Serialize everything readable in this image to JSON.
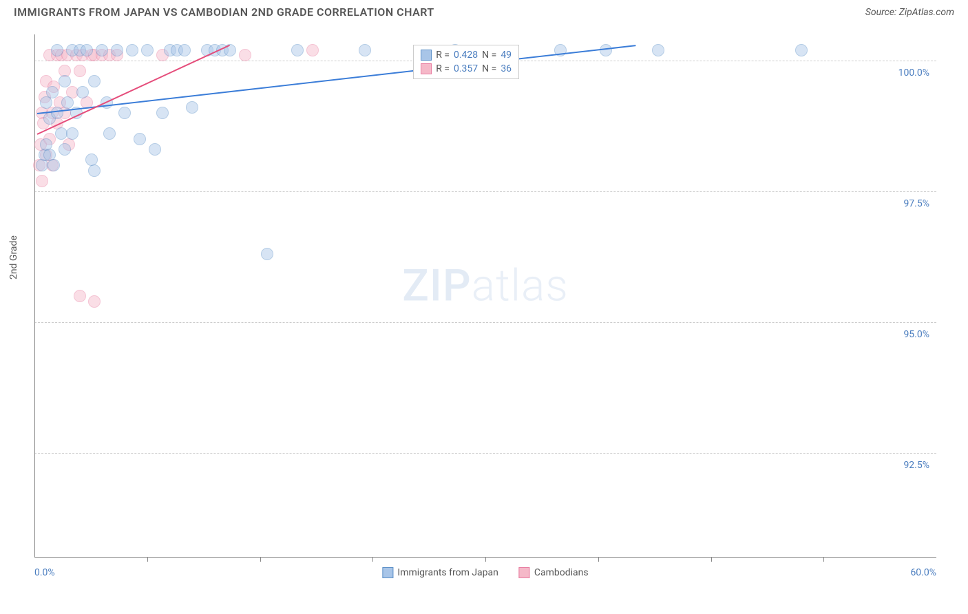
{
  "header": {
    "title": "IMMIGRANTS FROM JAPAN VS CAMBODIAN 2ND GRADE CORRELATION CHART",
    "source": "Source: ZipAtlas.com"
  },
  "watermark": "ZIPatlas",
  "chart": {
    "type": "scatter",
    "ylabel": "2nd Grade",
    "x_domain": [
      0,
      60
    ],
    "y_domain": [
      90.5,
      100.5
    ],
    "x_ticks": [
      0.0,
      60.0
    ],
    "x_tick_labels": [
      "0.0%",
      "60.0%"
    ],
    "x_minor_ticks": [
      7.5,
      15,
      22.5,
      30,
      37.5,
      45,
      52.5
    ],
    "y_ticks": [
      92.5,
      95.0,
      97.5,
      100.0
    ],
    "y_tick_labels": [
      "92.5%",
      "95.0%",
      "97.5%",
      "100.0%"
    ],
    "grid_color": "#cccccc",
    "axis_color": "#888888",
    "background_color": "#ffffff",
    "marker_radius": 9,
    "marker_opacity": 0.45,
    "series": [
      {
        "name": "Immigrants from Japan",
        "color_fill": "#a8c5e8",
        "color_stroke": "#5b8fc7",
        "r": 0.428,
        "n": 49,
        "trend": {
          "x1": 0.2,
          "y1": 99.0,
          "x2": 40.0,
          "y2": 100.3,
          "color": "#3b7dd8"
        },
        "points": [
          [
            0.5,
            98.0
          ],
          [
            0.7,
            98.2
          ],
          [
            0.8,
            99.2
          ],
          [
            0.8,
            98.4
          ],
          [
            1.0,
            98.9
          ],
          [
            1.0,
            98.2
          ],
          [
            1.2,
            99.4
          ],
          [
            1.3,
            98.0
          ],
          [
            1.5,
            100.2
          ],
          [
            1.5,
            99.0
          ],
          [
            1.8,
            98.6
          ],
          [
            2.0,
            99.6
          ],
          [
            2.0,
            98.3
          ],
          [
            2.2,
            99.2
          ],
          [
            2.5,
            100.2
          ],
          [
            2.5,
            98.6
          ],
          [
            2.8,
            99.0
          ],
          [
            3.0,
            100.2
          ],
          [
            3.2,
            99.4
          ],
          [
            3.5,
            100.2
          ],
          [
            3.8,
            98.1
          ],
          [
            4.0,
            99.6
          ],
          [
            4.0,
            97.9
          ],
          [
            4.5,
            100.2
          ],
          [
            4.8,
            99.2
          ],
          [
            5.0,
            98.6
          ],
          [
            5.5,
            100.2
          ],
          [
            6.0,
            99.0
          ],
          [
            6.5,
            100.2
          ],
          [
            7.0,
            98.5
          ],
          [
            7.5,
            100.2
          ],
          [
            8.0,
            98.3
          ],
          [
            8.5,
            99.0
          ],
          [
            9.0,
            100.2
          ],
          [
            9.5,
            100.2
          ],
          [
            10.0,
            100.2
          ],
          [
            10.5,
            99.1
          ],
          [
            11.5,
            100.2
          ],
          [
            12.0,
            100.2
          ],
          [
            12.5,
            100.2
          ],
          [
            13.0,
            100.2
          ],
          [
            15.5,
            96.3
          ],
          [
            17.5,
            100.2
          ],
          [
            22.0,
            100.2
          ],
          [
            28.0,
            100.2
          ],
          [
            35.0,
            100.2
          ],
          [
            38.0,
            100.2
          ],
          [
            41.5,
            100.2
          ],
          [
            51.0,
            100.2
          ]
        ]
      },
      {
        "name": "Cambodians",
        "color_fill": "#f5b8c8",
        "color_stroke": "#e87ba0",
        "r": 0.357,
        "n": 36,
        "trend": {
          "x1": 0.2,
          "y1": 98.6,
          "x2": 13.0,
          "y2": 100.3,
          "color": "#e54d7b"
        },
        "points": [
          [
            0.3,
            98.0
          ],
          [
            0.4,
            98.4
          ],
          [
            0.5,
            99.0
          ],
          [
            0.5,
            97.7
          ],
          [
            0.6,
            98.8
          ],
          [
            0.7,
            99.3
          ],
          [
            0.8,
            98.2
          ],
          [
            0.8,
            99.6
          ],
          [
            1.0,
            100.1
          ],
          [
            1.0,
            98.5
          ],
          [
            1.2,
            99.0
          ],
          [
            1.2,
            98.0
          ],
          [
            1.3,
            99.5
          ],
          [
            1.5,
            100.1
          ],
          [
            1.5,
            98.8
          ],
          [
            1.7,
            99.2
          ],
          [
            1.8,
            100.1
          ],
          [
            2.0,
            99.0
          ],
          [
            2.0,
            99.8
          ],
          [
            2.2,
            100.1
          ],
          [
            2.3,
            98.4
          ],
          [
            2.5,
            99.4
          ],
          [
            2.8,
            100.1
          ],
          [
            3.0,
            99.8
          ],
          [
            3.0,
            95.5
          ],
          [
            3.2,
            100.1
          ],
          [
            3.5,
            99.2
          ],
          [
            3.8,
            100.1
          ],
          [
            4.0,
            100.1
          ],
          [
            4.0,
            95.4
          ],
          [
            4.5,
            100.1
          ],
          [
            5.0,
            100.1
          ],
          [
            5.5,
            100.1
          ],
          [
            8.5,
            100.1
          ],
          [
            14.0,
            100.1
          ],
          [
            18.5,
            100.2
          ]
        ]
      }
    ],
    "bottom_legend": [
      {
        "label": "Immigrants from Japan",
        "fill": "#a8c5e8",
        "stroke": "#5b8fc7"
      },
      {
        "label": "Cambodians",
        "fill": "#f5b8c8",
        "stroke": "#e87ba0"
      }
    ],
    "stats_legend": {
      "left_pct": 42,
      "top_pct": 2
    }
  }
}
